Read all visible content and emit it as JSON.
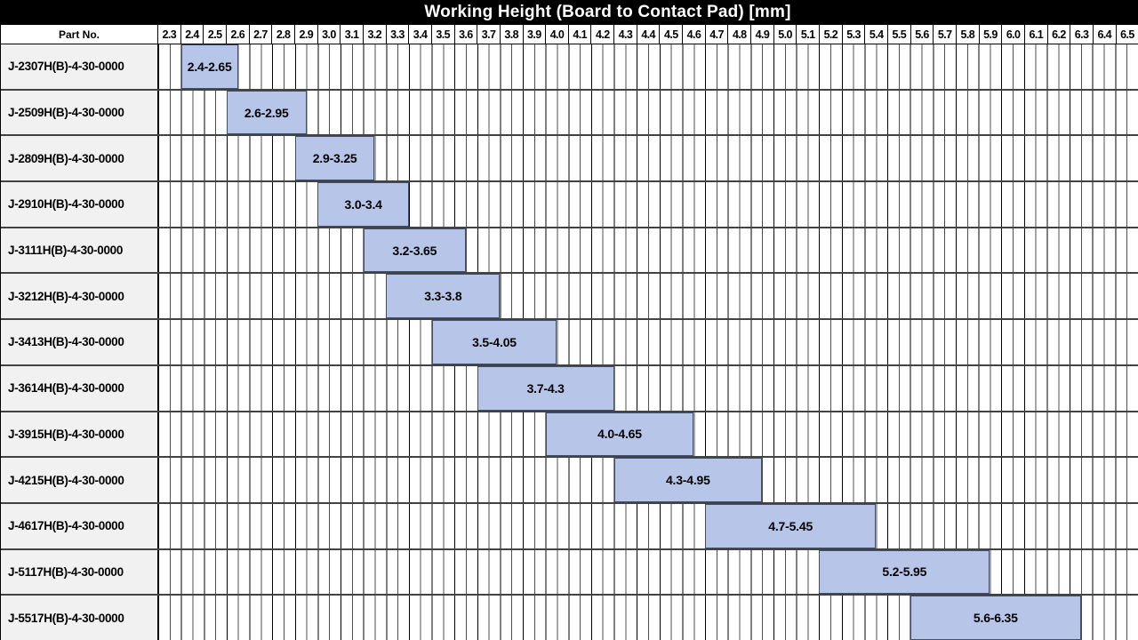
{
  "title_bar": {
    "title": "Working Height (Board to Contact Pad) [mm]"
  },
  "table": {
    "part_column_header": "Part No."
  },
  "colors": {
    "title_bg": "#000000",
    "title_fg": "#ffffff",
    "header_bg": "#ffffff",
    "part_cell_bg": "#f1f1f1",
    "bar_fill": "#b6c5e8",
    "bar_border": "#3f4e6d",
    "row_separator": "#424242",
    "grid_line_major": "#000000",
    "grid_line_minor": "#4f4f4f",
    "outer_border": "#000000"
  },
  "chart_data": {
    "type": "bar",
    "subtype": "horizontal-range",
    "title": "Working Height (Board to Contact Pad) [mm]",
    "legend": "none",
    "grid": "on",
    "x_axis": {
      "min": 2.3,
      "max": 6.6,
      "tick_step": 0.1,
      "minor_step": 0.05,
      "unit": "mm",
      "tick_labels": [
        "2.3",
        "2.4",
        "2.5",
        "2.6",
        "2.7",
        "2.8",
        "2.9",
        "3.0",
        "3.1",
        "3.2",
        "3.3",
        "3.4",
        "3.5",
        "3.6",
        "3.7",
        "3.8",
        "3.9",
        "4.0",
        "4.1",
        "4.2",
        "4.3",
        "4.4",
        "4.5",
        "4.6",
        "4.7",
        "4.8",
        "4.9",
        "5.0",
        "5.1",
        "5.2",
        "5.3",
        "5.4",
        "5.5",
        "5.6",
        "5.7",
        "5.8",
        "5.9",
        "6.0",
        "6.1",
        "6.2",
        "6.3",
        "6.4",
        "6.5"
      ]
    },
    "categories": [
      "J-2307H(B)-4-30-0000",
      "J-2509H(B)-4-30-0000",
      "J-2809H(B)-4-30-0000",
      "J-2910H(B)-4-30-0000",
      "J-3111H(B)-4-30-0000",
      "J-3212H(B)-4-30-0000",
      "J-3413H(B)-4-30-0000",
      "J-3614H(B)-4-30-0000",
      "J-3915H(B)-4-30-0000",
      "J-4215H(B)-4-30-0000",
      "J-4617H(B)-4-30-0000",
      "J-5117H(B)-4-30-0000",
      "J-5517H(B)-4-30-0000"
    ],
    "rows": [
      {
        "part_no": "J-2307H(B)-4-30-0000",
        "range_start": 2.4,
        "range_end": 2.65,
        "label": "2.4-2.65"
      },
      {
        "part_no": "J-2509H(B)-4-30-0000",
        "range_start": 2.6,
        "range_end": 2.95,
        "label": "2.6-2.95"
      },
      {
        "part_no": "J-2809H(B)-4-30-0000",
        "range_start": 2.9,
        "range_end": 3.25,
        "label": "2.9-3.25"
      },
      {
        "part_no": "J-2910H(B)-4-30-0000",
        "range_start": 3.0,
        "range_end": 3.4,
        "label": "3.0-3.4"
      },
      {
        "part_no": "J-3111H(B)-4-30-0000",
        "range_start": 3.2,
        "range_end": 3.65,
        "label": "3.2-3.65"
      },
      {
        "part_no": "J-3212H(B)-4-30-0000",
        "range_start": 3.3,
        "range_end": 3.8,
        "label": "3.3-3.8"
      },
      {
        "part_no": "J-3413H(B)-4-30-0000",
        "range_start": 3.5,
        "range_end": 4.05,
        "label": "3.5-4.05"
      },
      {
        "part_no": "J-3614H(B)-4-30-0000",
        "range_start": 3.7,
        "range_end": 4.3,
        "label": "3.7-4.3"
      },
      {
        "part_no": "J-3915H(B)-4-30-0000",
        "range_start": 4.0,
        "range_end": 4.65,
        "label": "4.0-4.65"
      },
      {
        "part_no": "J-4215H(B)-4-30-0000",
        "range_start": 4.3,
        "range_end": 4.95,
        "label": "4.3-4.95"
      },
      {
        "part_no": "J-4617H(B)-4-30-0000",
        "range_start": 4.7,
        "range_end": 5.45,
        "label": "4.7-5.45"
      },
      {
        "part_no": "J-5117H(B)-4-30-0000",
        "range_start": 5.2,
        "range_end": 5.95,
        "label": "5.2-5.95"
      },
      {
        "part_no": "J-5517H(B)-4-30-0000",
        "range_start": 5.6,
        "range_end": 6.35,
        "label": "5.6-6.35"
      }
    ]
  }
}
